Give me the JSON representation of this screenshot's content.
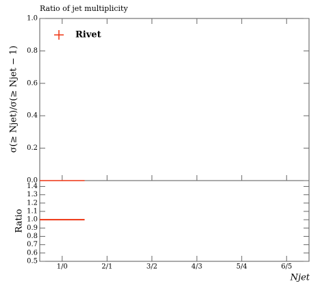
{
  "chart_data": {
    "type": "bar",
    "title": "Ratio of jet multiplicity",
    "ylabel": "σ(≥ Njet)/σ(≥ Njet − 1)",
    "xlabel": "Njet",
    "ratio_ylabel": "Ratio",
    "categories": [
      "1/0",
      "2/1",
      "3/2",
      "4/3",
      "5/4",
      "6/5"
    ],
    "series": [
      {
        "name": "Rivet",
        "color": "#ee3311",
        "values": [
          0,
          null,
          null,
          null,
          null,
          null
        ]
      }
    ],
    "ratio_values": [
      1.0,
      null,
      null,
      null,
      null,
      null
    ],
    "ylim": [
      0,
      1
    ],
    "yticks": [
      {
        "value": 0,
        "label": "0.0"
      },
      0.2,
      0.4,
      0.6,
      0.8,
      {
        "value": 1,
        "label": "1.0"
      }
    ],
    "ratio_ylim": [
      0.5,
      1.47
    ],
    "ratio_yticks": [
      0.5,
      0.6,
      0.7,
      0.8,
      0.9,
      {
        "value": 1,
        "label": "1.0"
      },
      1.1,
      1.2,
      1.3,
      1.4
    ],
    "legend": "upper left"
  }
}
